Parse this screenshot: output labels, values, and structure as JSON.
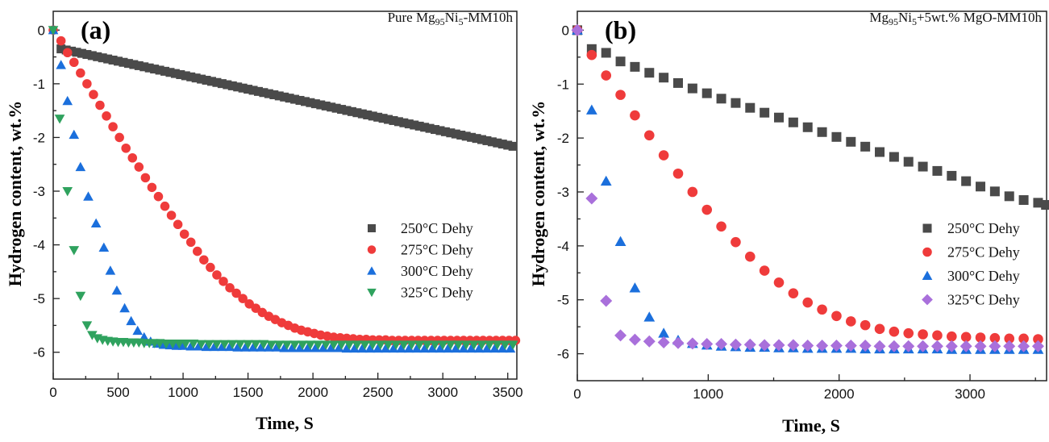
{
  "chart_data": [
    {
      "type": "scatter",
      "panel_label": "(a)",
      "title_main": "Pure Mg",
      "title_sub1": "95",
      "title_mid": "Ni",
      "title_sub2": "5",
      "title_end": "-MM10h",
      "xlabel": "Time, S",
      "ylabel": "Hydrogen content, wt.%",
      "xlim": [
        0,
        3570
      ],
      "ylim": [
        -6.5,
        0.35
      ],
      "xticks": [
        0,
        500,
        1000,
        1500,
        2000,
        2500,
        3000,
        3500
      ],
      "xtick_labels": [
        "0",
        "500",
        "1000",
        "1500",
        "2000",
        "2500",
        "3000",
        "3500"
      ],
      "xminor": [
        250,
        750,
        1250,
        1750,
        2250,
        2750,
        3250
      ],
      "yticks": [
        0,
        -1,
        -2,
        -3,
        -4,
        -5,
        -6
      ],
      "ytick_labels": [
        "0",
        "-1",
        "-2",
        "-3",
        "-4",
        "-5",
        "-6"
      ],
      "yminor": [
        -0.5,
        -1.5,
        -2.5,
        -3.5,
        -4.5,
        -5.5
      ],
      "legend_position": "center-right",
      "series": [
        {
          "name": "250°C  Dehy",
          "marker": "square",
          "color": "#4a4a4a",
          "x_start": 60,
          "x_step": 40,
          "x_end": 3570,
          "model": "linear",
          "y_at_start": -0.35,
          "y_at_end": -2.18
        },
        {
          "name": "275°C  Dehy",
          "marker": "circle",
          "color": "#ef3b3b",
          "x": [
            0,
            60,
            110,
            160,
            210,
            260,
            310,
            360,
            410,
            460,
            510,
            560,
            610,
            660,
            710,
            760,
            810,
            860,
            910,
            960,
            1010,
            1060,
            1110,
            1160,
            1210,
            1260,
            1310,
            1360,
            1410,
            1460,
            1510,
            1560,
            1610,
            1660,
            1710,
            1760,
            1810,
            1860,
            1910,
            1960,
            2010,
            2060,
            2110,
            2160,
            2210,
            2260,
            2310,
            2360,
            2410,
            2460,
            2510,
            2560,
            2610,
            2660,
            2710,
            2760,
            2810,
            2860,
            2910,
            2960,
            3010,
            3060,
            3110,
            3160,
            3210,
            3260,
            3310,
            3360,
            3410,
            3460,
            3510,
            3560
          ],
          "y": [
            0,
            -0.2,
            -0.42,
            -0.6,
            -0.8,
            -1.0,
            -1.2,
            -1.4,
            -1.6,
            -1.8,
            -2.0,
            -2.2,
            -2.38,
            -2.55,
            -2.75,
            -2.93,
            -3.1,
            -3.28,
            -3.45,
            -3.62,
            -3.8,
            -3.95,
            -4.12,
            -4.28,
            -4.42,
            -4.56,
            -4.68,
            -4.8,
            -4.9,
            -5.0,
            -5.1,
            -5.18,
            -5.26,
            -5.33,
            -5.39,
            -5.45,
            -5.5,
            -5.55,
            -5.59,
            -5.62,
            -5.65,
            -5.68,
            -5.7,
            -5.72,
            -5.73,
            -5.74,
            -5.75,
            -5.76,
            -5.76,
            -5.77,
            -5.77,
            -5.77,
            -5.78,
            -5.78,
            -5.78,
            -5.78,
            -5.78,
            -5.78,
            -5.78,
            -5.78,
            -5.78,
            -5.78,
            -5.78,
            -5.78,
            -5.78,
            -5.78,
            -5.78,
            -5.78,
            -5.78,
            -5.78,
            -5.78,
            -5.78
          ]
        },
        {
          "name": "300°C  Dehy",
          "marker": "triangle-up",
          "color": "#1b6fdc",
          "x": [
            0,
            60,
            110,
            160,
            210,
            270,
            330,
            390,
            440,
            490,
            550,
            600,
            650,
            700,
            750,
            800,
            850,
            900,
            950,
            1000,
            1060,
            1120,
            1180,
            1240,
            1300,
            1360,
            1420,
            1480,
            1540,
            1600,
            1660,
            1720,
            1780,
            1840,
            1900,
            1960,
            2020,
            2080,
            2140,
            2200,
            2260,
            2320,
            2380,
            2440,
            2500,
            2560,
            2620,
            2680,
            2740,
            2800,
            2860,
            2920,
            2980,
            3040,
            3100,
            3160,
            3220,
            3280,
            3340,
            3400,
            3460,
            3520
          ],
          "y": [
            0,
            -0.65,
            -1.32,
            -1.95,
            -2.55,
            -3.1,
            -3.6,
            -4.05,
            -4.48,
            -4.85,
            -5.18,
            -5.42,
            -5.6,
            -5.72,
            -5.8,
            -5.84,
            -5.86,
            -5.87,
            -5.88,
            -5.88,
            -5.89,
            -5.89,
            -5.9,
            -5.9,
            -5.9,
            -5.9,
            -5.91,
            -5.91,
            -5.91,
            -5.91,
            -5.91,
            -5.91,
            -5.92,
            -5.92,
            -5.92,
            -5.92,
            -5.92,
            -5.92,
            -5.92,
            -5.92,
            -5.93,
            -5.93,
            -5.93,
            -5.93,
            -5.93,
            -5.93,
            -5.93,
            -5.93,
            -5.93,
            -5.93,
            -5.93,
            -5.93,
            -5.93,
            -5.93,
            -5.93,
            -5.93,
            -5.93,
            -5.93,
            -5.93,
            -5.93,
            -5.93,
            -5.93
          ]
        },
        {
          "name": "325°C  Dehy",
          "marker": "triangle-down",
          "color": "#2fa25e",
          "x": [
            0,
            50,
            110,
            160,
            210,
            260,
            300,
            340,
            380,
            420,
            460,
            500,
            540,
            580,
            620,
            660,
            700,
            740,
            780,
            820,
            870,
            920,
            970,
            1020,
            1080,
            1140,
            1200,
            1260,
            1320,
            1380,
            1440,
            1500,
            1560,
            1620,
            1680,
            1740,
            1800,
            1860,
            1920,
            1980,
            2040,
            2100,
            2160,
            2220,
            2280,
            2340,
            2400,
            2460,
            2520,
            2580,
            2640,
            2700,
            2760,
            2820,
            2880,
            2940,
            3000,
            3060,
            3120,
            3180,
            3240,
            3300,
            3360,
            3420,
            3480,
            3540
          ],
          "y": [
            0,
            -1.65,
            -3.0,
            -4.1,
            -4.95,
            -5.5,
            -5.68,
            -5.74,
            -5.77,
            -5.79,
            -5.8,
            -5.81,
            -5.81,
            -5.82,
            -5.82,
            -5.82,
            -5.83,
            -5.83,
            -5.83,
            -5.83,
            -5.84,
            -5.84,
            -5.84,
            -5.84,
            -5.84,
            -5.85,
            -5.85,
            -5.85,
            -5.85,
            -5.85,
            -5.85,
            -5.85,
            -5.85,
            -5.85,
            -5.86,
            -5.86,
            -5.86,
            -5.86,
            -5.86,
            -5.86,
            -5.86,
            -5.86,
            -5.86,
            -5.86,
            -5.86,
            -5.86,
            -5.86,
            -5.86,
            -5.86,
            -5.86,
            -5.86,
            -5.86,
            -5.86,
            -5.86,
            -5.86,
            -5.86,
            -5.86,
            -5.86,
            -5.86,
            -5.86,
            -5.86,
            -5.86,
            -5.86,
            -5.86,
            -5.86,
            -5.86
          ]
        }
      ]
    },
    {
      "type": "scatter",
      "panel_label": "(b)",
      "title_main": "Mg",
      "title_sub1": "95",
      "title_mid": "Ni",
      "title_sub2": "5",
      "title_end": "+5wt.% MgO-MM10h",
      "xlabel": "Time, S",
      "ylabel": "Hydrogen content, wt.%",
      "xlim": [
        0,
        3585
      ],
      "ylim": [
        -6.5,
        0.35
      ],
      "xticks": [
        0,
        1000,
        2000,
        3000
      ],
      "xtick_labels": [
        "0",
        "1000",
        "2000",
        "3000"
      ],
      "xminor": [
        500,
        1500,
        2500,
        3500
      ],
      "yticks": [
        0,
        -1,
        -2,
        -3,
        -4,
        -5,
        -6
      ],
      "ytick_labels": [
        "0",
        "-1",
        "-2",
        "-3",
        "-4",
        "-5",
        "-6"
      ],
      "yminor": [
        -0.5,
        -1.5,
        -2.5,
        -3.5,
        -4.5,
        -5.5
      ],
      "legend_position": "center-right",
      "series": [
        {
          "name": "250°C Dehy",
          "marker": "square",
          "color": "#4a4a4a",
          "x": [
            0,
            110,
            220,
            330,
            440,
            550,
            660,
            770,
            880,
            990,
            1100,
            1210,
            1320,
            1430,
            1540,
            1650,
            1760,
            1870,
            1980,
            2090,
            2200,
            2310,
            2420,
            2530,
            2640,
            2750,
            2860,
            2970,
            3080,
            3190,
            3300,
            3410,
            3520,
            3580
          ],
          "y": [
            0,
            -0.35,
            -0.42,
            -0.58,
            -0.68,
            -0.79,
            -0.88,
            -0.98,
            -1.08,
            -1.17,
            -1.27,
            -1.35,
            -1.44,
            -1.53,
            -1.62,
            -1.71,
            -1.8,
            -1.89,
            -1.98,
            -2.07,
            -2.16,
            -2.26,
            -2.35,
            -2.44,
            -2.53,
            -2.61,
            -2.7,
            -2.8,
            -2.9,
            -2.99,
            -3.08,
            -3.15,
            -3.2,
            -3.24
          ]
        },
        {
          "name": "275°C Dehy",
          "marker": "circle",
          "color": "#ef3b3b",
          "x": [
            0,
            110,
            220,
            330,
            440,
            550,
            660,
            770,
            880,
            990,
            1100,
            1210,
            1320,
            1430,
            1540,
            1650,
            1760,
            1870,
            1980,
            2090,
            2200,
            2310,
            2420,
            2530,
            2640,
            2750,
            2860,
            2970,
            3080,
            3190,
            3300,
            3410,
            3520
          ],
          "y": [
            0,
            -0.46,
            -0.84,
            -1.2,
            -1.58,
            -1.95,
            -2.32,
            -2.66,
            -3.0,
            -3.33,
            -3.64,
            -3.93,
            -4.2,
            -4.46,
            -4.68,
            -4.88,
            -5.05,
            -5.18,
            -5.3,
            -5.4,
            -5.47,
            -5.54,
            -5.59,
            -5.62,
            -5.64,
            -5.66,
            -5.68,
            -5.69,
            -5.7,
            -5.71,
            -5.72,
            -5.72,
            -5.73
          ]
        },
        {
          "name": "300°C Dehy",
          "marker": "triangle-up",
          "color": "#1b6fdc",
          "x": [
            0,
            110,
            220,
            330,
            440,
            550,
            660,
            770,
            880,
            990,
            1100,
            1210,
            1320,
            1430,
            1540,
            1650,
            1760,
            1870,
            1980,
            2090,
            2200,
            2310,
            2420,
            2530,
            2640,
            2750,
            2860,
            2970,
            3080,
            3190,
            3300,
            3410,
            3520
          ],
          "y": [
            0,
            -1.48,
            -2.8,
            -3.92,
            -4.78,
            -5.32,
            -5.62,
            -5.75,
            -5.81,
            -5.84,
            -5.86,
            -5.87,
            -5.88,
            -5.88,
            -5.89,
            -5.89,
            -5.9,
            -5.9,
            -5.9,
            -5.9,
            -5.91,
            -5.91,
            -5.91,
            -5.91,
            -5.91,
            -5.91,
            -5.92,
            -5.92,
            -5.92,
            -5.92,
            -5.92,
            -5.92,
            -5.92
          ]
        },
        {
          "name": "325°C Dehy",
          "marker": "diamond",
          "color": "#a970db",
          "x": [
            0,
            110,
            220,
            330,
            440,
            550,
            660,
            770,
            880,
            990,
            1100,
            1210,
            1320,
            1430,
            1540,
            1650,
            1760,
            1870,
            1980,
            2090,
            2200,
            2310,
            2420,
            2530,
            2640,
            2750,
            2860,
            2970,
            3080,
            3190,
            3300,
            3410,
            3520
          ],
          "y": [
            0,
            -3.12,
            -5.02,
            -5.66,
            -5.74,
            -5.77,
            -5.79,
            -5.8,
            -5.81,
            -5.82,
            -5.82,
            -5.83,
            -5.83,
            -5.84,
            -5.84,
            -5.84,
            -5.85,
            -5.85,
            -5.85,
            -5.85,
            -5.85,
            -5.86,
            -5.86,
            -5.86,
            -5.86,
            -5.86,
            -5.86,
            -5.86,
            -5.86,
            -5.86,
            -5.86,
            -5.86,
            -5.86
          ]
        }
      ]
    }
  ]
}
